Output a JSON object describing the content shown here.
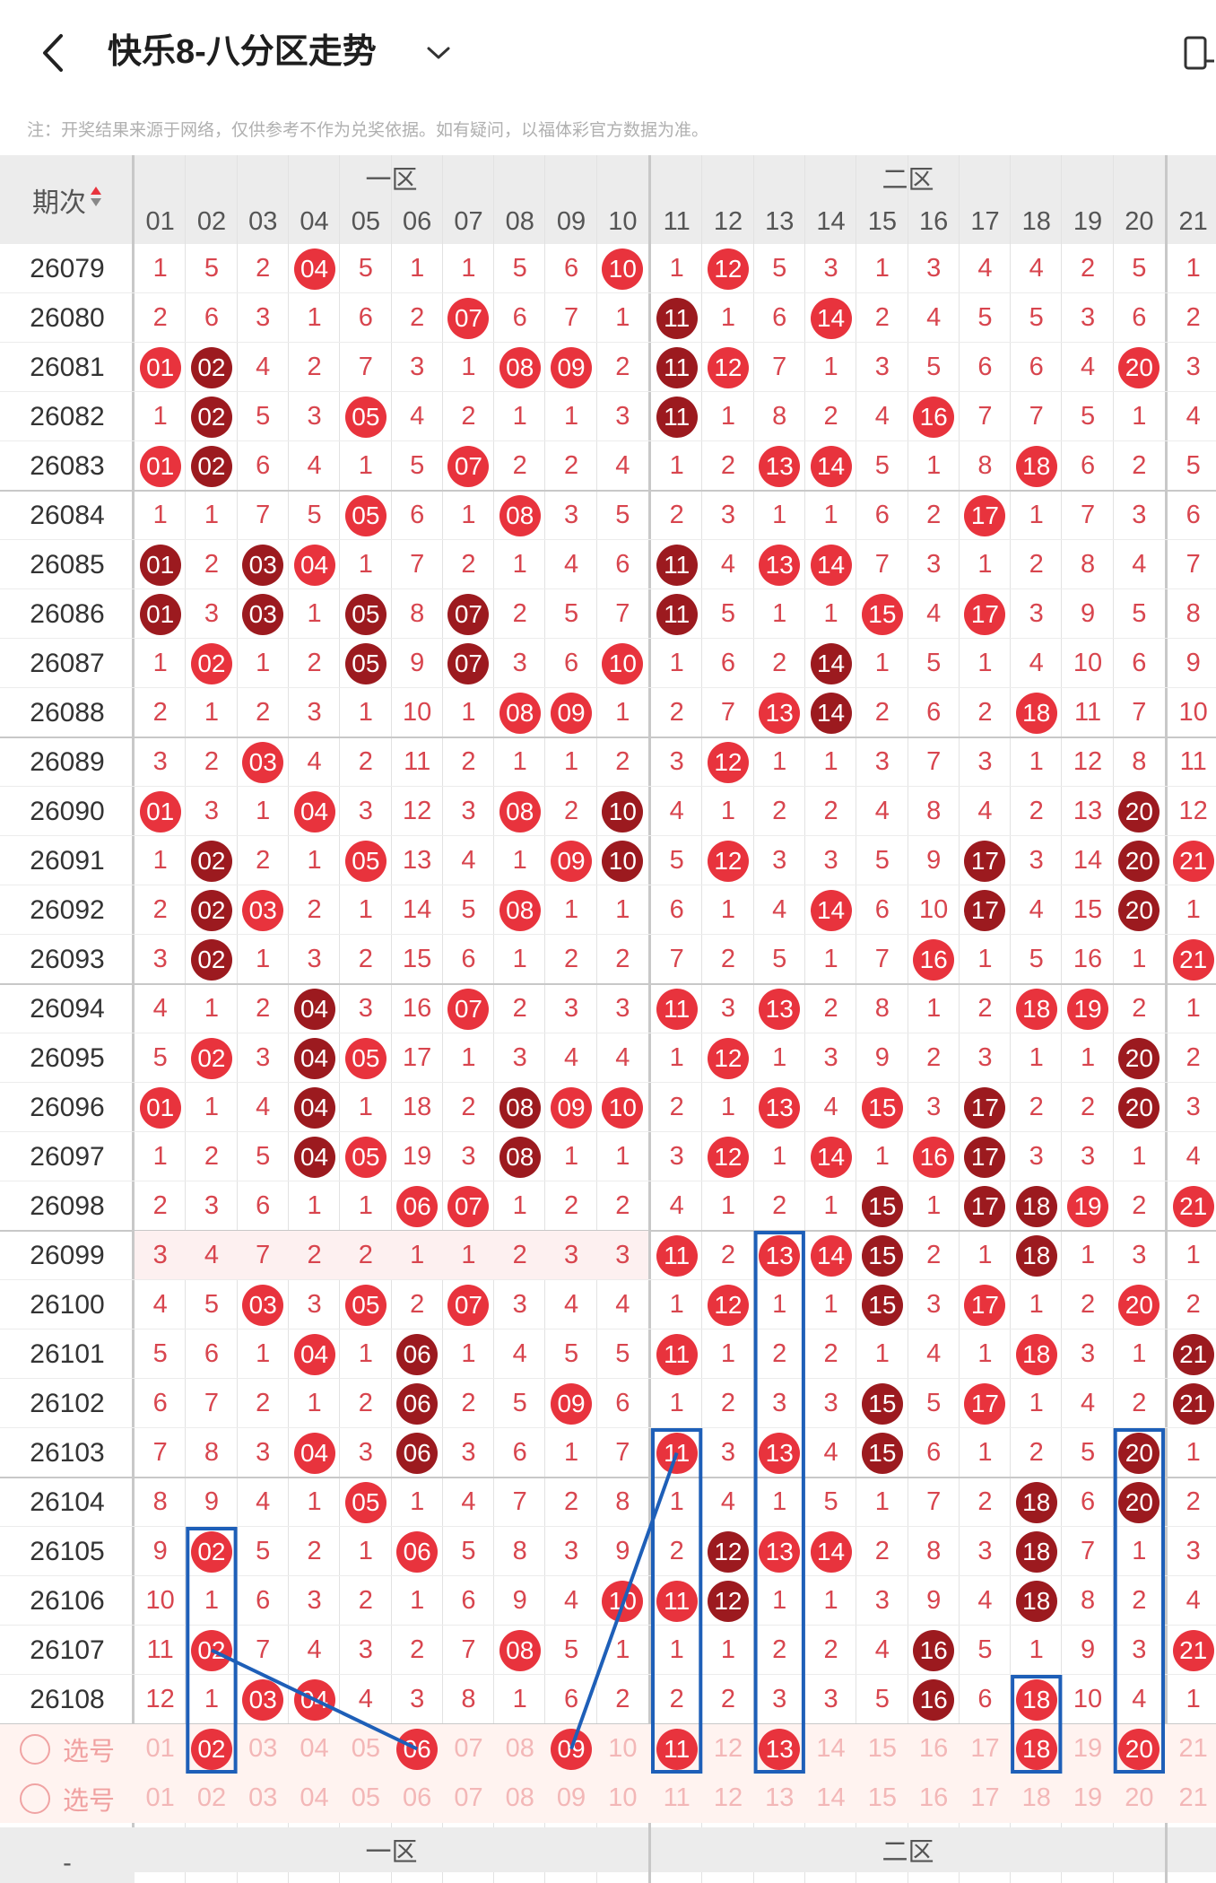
{
  "header": {
    "title": "快乐8-八分区走势",
    "back_icon": "back-arrow-icon",
    "dropdown_icon": "chevron-down-icon",
    "device_icon": "phone-rotate-icon"
  },
  "note": "注：开奖结果来源于网络，仅供参考不作为兑奖依据。如有疑问，以福体彩官方数据为准。",
  "table": {
    "period_header": "期次",
    "zones": [
      "一区",
      "二区"
    ],
    "columns": [
      "01",
      "02",
      "03",
      "04",
      "05",
      "06",
      "07",
      "08",
      "09",
      "10",
      "11",
      "12",
      "13",
      "14",
      "15",
      "16",
      "17",
      "18",
      "19",
      "20",
      "21"
    ],
    "rows": [
      {
        "period": "26079",
        "cells": [
          "1",
          "5",
          "2",
          "04",
          "5",
          "1",
          "1",
          "5",
          "6",
          "10",
          "1",
          "12",
          "5",
          "3",
          "1",
          "3",
          "4",
          "4",
          "2",
          "5",
          "1"
        ]
      },
      {
        "period": "26080",
        "cells": [
          "2",
          "6",
          "3",
          "1",
          "6",
          "2",
          "07",
          "6",
          "7",
          "1",
          "11",
          "1",
          "6",
          "14",
          "2",
          "4",
          "5",
          "5",
          "3",
          "6",
          "2"
        ]
      },
      {
        "period": "26081",
        "cells": [
          "01",
          "02",
          "4",
          "2",
          "7",
          "3",
          "1",
          "08",
          "09",
          "2",
          "11",
          "12",
          "7",
          "1",
          "3",
          "5",
          "6",
          "6",
          "4",
          "20",
          "3"
        ]
      },
      {
        "period": "26082",
        "cells": [
          "1",
          "02",
          "5",
          "3",
          "05",
          "4",
          "2",
          "1",
          "1",
          "3",
          "11",
          "1",
          "8",
          "2",
          "4",
          "16",
          "7",
          "7",
          "5",
          "1",
          "4"
        ]
      },
      {
        "period": "26083",
        "cells": [
          "01",
          "02",
          "6",
          "4",
          "1",
          "5",
          "07",
          "2",
          "2",
          "4",
          "1",
          "2",
          "13",
          "14",
          "5",
          "1",
          "8",
          "18",
          "6",
          "2",
          "5"
        ]
      },
      {
        "period": "26084",
        "cells": [
          "1",
          "1",
          "7",
          "5",
          "05",
          "6",
          "1",
          "08",
          "3",
          "5",
          "2",
          "3",
          "1",
          "1",
          "6",
          "2",
          "17",
          "1",
          "7",
          "3",
          "6"
        ]
      },
      {
        "period": "26085",
        "cells": [
          "01",
          "2",
          "03",
          "04",
          "1",
          "7",
          "2",
          "1",
          "4",
          "6",
          "11",
          "4",
          "13",
          "14",
          "7",
          "3",
          "1",
          "2",
          "8",
          "4",
          "7"
        ]
      },
      {
        "period": "26086",
        "cells": [
          "01",
          "3",
          "03",
          "1",
          "05",
          "8",
          "07",
          "2",
          "5",
          "7",
          "11",
          "5",
          "1",
          "1",
          "15",
          "4",
          "17",
          "3",
          "9",
          "5",
          "8"
        ]
      },
      {
        "period": "26087",
        "cells": [
          "1",
          "02",
          "1",
          "2",
          "05",
          "9",
          "07",
          "3",
          "6",
          "10",
          "1",
          "6",
          "2",
          "14",
          "1",
          "5",
          "1",
          "4",
          "10",
          "6",
          "9"
        ]
      },
      {
        "period": "26088",
        "cells": [
          "2",
          "1",
          "2",
          "3",
          "1",
          "10",
          "1",
          "08",
          "09",
          "1",
          "2",
          "7",
          "13",
          "14",
          "2",
          "6",
          "2",
          "18",
          "11",
          "7",
          "10"
        ]
      },
      {
        "period": "26089",
        "cells": [
          "3",
          "2",
          "03",
          "4",
          "2",
          "11",
          "2",
          "1",
          "1",
          "2",
          "3",
          "12",
          "1",
          "1",
          "3",
          "7",
          "3",
          "1",
          "12",
          "8",
          "11"
        ]
      },
      {
        "period": "26090",
        "cells": [
          "01",
          "3",
          "1",
          "04",
          "3",
          "12",
          "3",
          "08",
          "2",
          "10",
          "4",
          "1",
          "2",
          "2",
          "4",
          "8",
          "4",
          "2",
          "13",
          "20",
          "12"
        ]
      },
      {
        "period": "26091",
        "cells": [
          "1",
          "02",
          "2",
          "1",
          "05",
          "13",
          "4",
          "1",
          "09",
          "10",
          "5",
          "12",
          "3",
          "3",
          "5",
          "9",
          "17",
          "3",
          "14",
          "20",
          "21"
        ]
      },
      {
        "period": "26092",
        "cells": [
          "2",
          "02",
          "03",
          "2",
          "1",
          "14",
          "5",
          "08",
          "1",
          "1",
          "6",
          "1",
          "4",
          "14",
          "6",
          "10",
          "17",
          "4",
          "15",
          "20",
          "1"
        ]
      },
      {
        "period": "26093",
        "cells": [
          "3",
          "02",
          "1",
          "3",
          "2",
          "15",
          "6",
          "1",
          "2",
          "2",
          "7",
          "2",
          "5",
          "1",
          "7",
          "16",
          "1",
          "5",
          "16",
          "1",
          "21"
        ]
      },
      {
        "period": "26094",
        "cells": [
          "4",
          "1",
          "2",
          "04",
          "3",
          "16",
          "07",
          "2",
          "3",
          "3",
          "11",
          "3",
          "13",
          "2",
          "8",
          "1",
          "2",
          "18",
          "19",
          "2",
          "1"
        ]
      },
      {
        "period": "26095",
        "cells": [
          "5",
          "02",
          "3",
          "04",
          "05",
          "17",
          "1",
          "3",
          "4",
          "4",
          "1",
          "12",
          "1",
          "3",
          "9",
          "2",
          "3",
          "1",
          "1",
          "20",
          "2"
        ]
      },
      {
        "period": "26096",
        "cells": [
          "01",
          "1",
          "4",
          "04",
          "1",
          "18",
          "2",
          "08",
          "09",
          "10",
          "2",
          "1",
          "13",
          "4",
          "15",
          "3",
          "17",
          "2",
          "2",
          "20",
          "3"
        ]
      },
      {
        "period": "26097",
        "cells": [
          "1",
          "2",
          "5",
          "04",
          "05",
          "19",
          "3",
          "08",
          "1",
          "1",
          "3",
          "12",
          "1",
          "14",
          "1",
          "16",
          "17",
          "3",
          "3",
          "1",
          "4"
        ]
      },
      {
        "period": "26098",
        "cells": [
          "2",
          "3",
          "6",
          "1",
          "1",
          "06",
          "07",
          "1",
          "2",
          "2",
          "4",
          "1",
          "2",
          "1",
          "15",
          "1",
          "17",
          "18",
          "19",
          "2",
          "21"
        ]
      },
      {
        "period": "26099",
        "cells": [
          "3",
          "4",
          "7",
          "2",
          "2",
          "1",
          "1",
          "2",
          "3",
          "3",
          "11",
          "2",
          "13",
          "14",
          "15",
          "2",
          "1",
          "18",
          "1",
          "3",
          "1"
        ]
      },
      {
        "period": "26100",
        "cells": [
          "4",
          "5",
          "03",
          "3",
          "05",
          "2",
          "07",
          "3",
          "4",
          "4",
          "1",
          "12",
          "1",
          "1",
          "15",
          "3",
          "17",
          "1",
          "2",
          "20",
          "2"
        ]
      },
      {
        "period": "26101",
        "cells": [
          "5",
          "6",
          "1",
          "04",
          "1",
          "06",
          "1",
          "4",
          "5",
          "5",
          "11",
          "1",
          "2",
          "2",
          "1",
          "4",
          "1",
          "18",
          "3",
          "1",
          "21"
        ]
      },
      {
        "period": "26102",
        "cells": [
          "6",
          "7",
          "2",
          "1",
          "2",
          "06",
          "2",
          "5",
          "09",
          "6",
          "1",
          "2",
          "3",
          "3",
          "15",
          "5",
          "17",
          "1",
          "4",
          "2",
          "21"
        ]
      },
      {
        "period": "26103",
        "cells": [
          "7",
          "8",
          "3",
          "04",
          "3",
          "06",
          "3",
          "6",
          "1",
          "7",
          "11",
          "3",
          "13",
          "4",
          "15",
          "6",
          "1",
          "2",
          "5",
          "20",
          "1"
        ]
      },
      {
        "period": "26104",
        "cells": [
          "8",
          "9",
          "4",
          "1",
          "05",
          "1",
          "4",
          "7",
          "2",
          "8",
          "1",
          "4",
          "1",
          "5",
          "1",
          "7",
          "2",
          "18",
          "6",
          "20",
          "2"
        ]
      },
      {
        "period": "26105",
        "cells": [
          "9",
          "02",
          "5",
          "2",
          "1",
          "06",
          "5",
          "8",
          "3",
          "9",
          "2",
          "12",
          "13",
          "14",
          "2",
          "8",
          "3",
          "18",
          "7",
          "1",
          "3"
        ]
      },
      {
        "period": "26106",
        "cells": [
          "10",
          "1",
          "6",
          "3",
          "2",
          "1",
          "6",
          "9",
          "4",
          "10",
          "11",
          "12",
          "1",
          "1",
          "3",
          "9",
          "4",
          "18",
          "8",
          "2",
          "4"
        ]
      },
      {
        "period": "26107",
        "cells": [
          "11",
          "02",
          "7",
          "4",
          "3",
          "2",
          "7",
          "08",
          "5",
          "1",
          "1",
          "1",
          "2",
          "2",
          "4",
          "16",
          "5",
          "1",
          "9",
          "3",
          "21"
        ]
      },
      {
        "period": "26108",
        "cells": [
          "12",
          "1",
          "03",
          "04",
          "4",
          "3",
          "8",
          "1",
          "6",
          "2",
          "2",
          "2",
          "3",
          "3",
          "5",
          "16",
          "6",
          "18",
          "10",
          "4",
          "1"
        ]
      }
    ],
    "pick_rows": [
      {
        "label": "选号",
        "cells": [
          "01",
          "02",
          "03",
          "04",
          "05",
          "06",
          "07",
          "08",
          "09",
          "10",
          "11",
          "12",
          "13",
          "14",
          "15",
          "16",
          "17",
          "18",
          "19",
          "20",
          "21"
        ],
        "selected": [
          "02",
          "06",
          "09",
          "11",
          "13",
          "18",
          "20"
        ]
      },
      {
        "label": "选号",
        "cells": [
          "01",
          "02",
          "03",
          "04",
          "05",
          "06",
          "07",
          "08",
          "09",
          "10",
          "11",
          "12",
          "13",
          "14",
          "15",
          "16",
          "17",
          "18",
          "19",
          "20",
          "21"
        ],
        "selected": []
      }
    ],
    "footer_zones": [
      "一区",
      "二区"
    ],
    "footer_period": "-"
  }
}
